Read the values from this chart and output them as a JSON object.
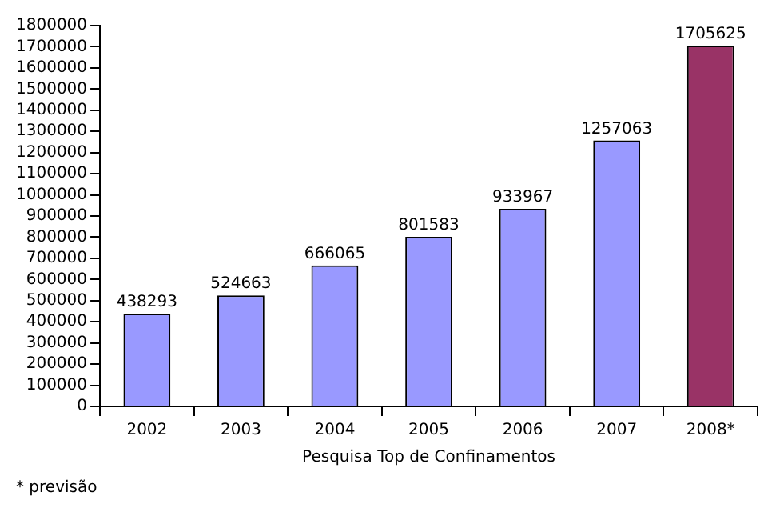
{
  "chart_data": {
    "type": "bar",
    "xlabel": "Pesquisa Top de Confinamentos",
    "categories": [
      "2002",
      "2003",
      "2004",
      "2005",
      "2006",
      "2007",
      "2008*"
    ],
    "values": [
      438293,
      524663,
      666065,
      801583,
      933967,
      1257063,
      1705625
    ],
    "colors": [
      "#9999ff",
      "#9999ff",
      "#9999ff",
      "#9999ff",
      "#9999ff",
      "#9999ff",
      "#993366"
    ],
    "ylim": [
      0,
      1800000
    ],
    "yticks": [
      0,
      100000,
      200000,
      300000,
      400000,
      500000,
      600000,
      700000,
      800000,
      900000,
      1000000,
      1100000,
      1200000,
      1300000,
      1400000,
      1500000,
      1600000,
      1700000,
      1800000
    ],
    "data_labels": true,
    "grid": false,
    "legend": false,
    "annotations": [
      "* previsão"
    ]
  }
}
